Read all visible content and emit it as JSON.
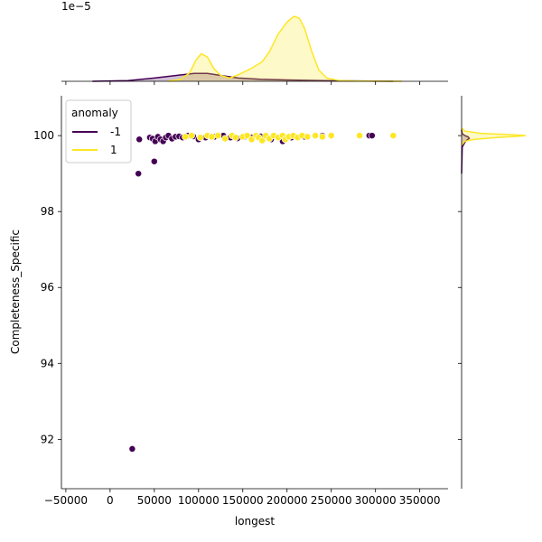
{
  "chart_data": {
    "type": "scatter",
    "kind": "jointplot",
    "xlabel": "longest",
    "ylabel": "Completeness_Specific",
    "xlim": [
      -55000,
      382000
    ],
    "ylim": [
      90.7,
      101.05
    ],
    "xticks": [
      -50000,
      0,
      50000,
      100000,
      150000,
      200000,
      250000,
      300000,
      350000
    ],
    "xtick_labels": [
      "−50000",
      "0",
      "50000",
      "100000",
      "150000",
      "200000",
      "250000",
      "300000",
      "350000"
    ],
    "yticks": [
      92,
      94,
      96,
      98,
      100
    ],
    "ytick_labels": [
      "92",
      "94",
      "96",
      "98",
      "100"
    ],
    "top_marginal": {
      "scale_label": "1e−5"
    },
    "legend": {
      "title": "anomaly",
      "placement": "upper left",
      "entries": [
        {
          "label": "-1",
          "color": "#440154"
        },
        {
          "label": "1",
          "color": "#fde725"
        }
      ]
    },
    "series": [
      {
        "name": "-1",
        "color": "#440154",
        "points": [
          [
            25000,
            91.75
          ],
          [
            32000,
            99.0
          ],
          [
            50000,
            99.32
          ],
          [
            33000,
            99.9
          ],
          [
            45000,
            99.95
          ],
          [
            48000,
            99.92
          ],
          [
            51000,
            99.85
          ],
          [
            54000,
            99.97
          ],
          [
            57000,
            99.9
          ],
          [
            60000,
            99.85
          ],
          [
            63000,
            99.95
          ],
          [
            66000,
            100.0
          ],
          [
            70000,
            99.92
          ],
          [
            74000,
            99.97
          ],
          [
            78000,
            99.98
          ],
          [
            82000,
            99.95
          ],
          [
            88000,
            100.0
          ],
          [
            94000,
            99.98
          ],
          [
            100000,
            99.9
          ],
          [
            108000,
            99.95
          ],
          [
            118000,
            99.97
          ],
          [
            128000,
            100.0
          ],
          [
            136000,
            99.95
          ],
          [
            144000,
            99.93
          ],
          [
            152000,
            99.97
          ],
          [
            160000,
            99.95
          ],
          [
            170000,
            99.98
          ],
          [
            182000,
            99.9
          ],
          [
            195000,
            99.85
          ],
          [
            205000,
            99.95
          ],
          [
            220000,
            99.97
          ],
          [
            240000,
            100.0
          ],
          [
            293000,
            100.0
          ],
          [
            296000,
            100.0
          ]
        ]
      },
      {
        "name": "1",
        "color": "#fde725",
        "points": [
          [
            85000,
            99.97
          ],
          [
            92000,
            100.0
          ],
          [
            102000,
            99.95
          ],
          [
            110000,
            100.0
          ],
          [
            115000,
            99.97
          ],
          [
            122000,
            100.0
          ],
          [
            130000,
            99.92
          ],
          [
            138000,
            100.0
          ],
          [
            142000,
            99.95
          ],
          [
            150000,
            99.97
          ],
          [
            155000,
            100.0
          ],
          [
            160000,
            99.9
          ],
          [
            165000,
            100.0
          ],
          [
            168000,
            99.95
          ],
          [
            172000,
            99.87
          ],
          [
            176000,
            100.0
          ],
          [
            180000,
            99.92
          ],
          [
            185000,
            100.0
          ],
          [
            190000,
            99.95
          ],
          [
            195000,
            100.0
          ],
          [
            198000,
            99.9
          ],
          [
            202000,
            99.97
          ],
          [
            207000,
            100.0
          ],
          [
            212000,
            99.95
          ],
          [
            217000,
            100.0
          ],
          [
            223000,
            99.97
          ],
          [
            232000,
            100.0
          ],
          [
            240000,
            99.97
          ],
          [
            250000,
            100.0
          ],
          [
            282000,
            100.0
          ],
          [
            320000,
            100.0
          ]
        ]
      }
    ],
    "top_kde": [
      {
        "name": "-1",
        "color": "#440154",
        "points": [
          [
            -20000,
            0
          ],
          [
            20000,
            0.01
          ],
          [
            50000,
            0.05
          ],
          [
            75000,
            0.09
          ],
          [
            95000,
            0.12
          ],
          [
            110000,
            0.12
          ],
          [
            125000,
            0.09
          ],
          [
            145000,
            0.05
          ],
          [
            170000,
            0.03
          ],
          [
            200000,
            0.02
          ],
          [
            240000,
            0.01
          ],
          [
            280000,
            0.005
          ],
          [
            320000,
            0
          ]
        ]
      },
      {
        "name": "1",
        "color": "#fde725",
        "points": [
          [
            65000,
            0
          ],
          [
            80000,
            0.03
          ],
          [
            90000,
            0.13
          ],
          [
            97000,
            0.32
          ],
          [
            103000,
            0.42
          ],
          [
            110000,
            0.37
          ],
          [
            117000,
            0.2
          ],
          [
            125000,
            0.09
          ],
          [
            135000,
            0.05
          ],
          [
            145000,
            0.1
          ],
          [
            160000,
            0.2
          ],
          [
            172000,
            0.3
          ],
          [
            180000,
            0.45
          ],
          [
            190000,
            0.72
          ],
          [
            200000,
            0.9
          ],
          [
            208000,
            0.99
          ],
          [
            214000,
            0.96
          ],
          [
            220000,
            0.8
          ],
          [
            228000,
            0.45
          ],
          [
            236000,
            0.17
          ],
          [
            245000,
            0.05
          ],
          [
            260000,
            0.01
          ],
          [
            280000,
            0.003
          ],
          [
            330000,
            0
          ]
        ]
      }
    ],
    "right_kde": [
      {
        "name": "-1",
        "color": "#440154",
        "points": [
          [
            99.0,
            0
          ],
          [
            99.7,
            0.01
          ],
          [
            99.85,
            0.06
          ],
          [
            99.93,
            0.12
          ],
          [
            99.97,
            0.1
          ],
          [
            100.0,
            0.05
          ],
          [
            100.05,
            0.01
          ],
          [
            100.15,
            0
          ]
        ]
      },
      {
        "name": "1",
        "color": "#fde725",
        "points": [
          [
            99.75,
            0
          ],
          [
            99.85,
            0.05
          ],
          [
            99.9,
            0.2
          ],
          [
            99.95,
            0.55
          ],
          [
            99.98,
            0.85
          ],
          [
            100.0,
            1.0
          ],
          [
            100.02,
            0.8
          ],
          [
            100.06,
            0.3
          ],
          [
            100.12,
            0.05
          ],
          [
            100.2,
            0
          ]
        ]
      }
    ]
  }
}
